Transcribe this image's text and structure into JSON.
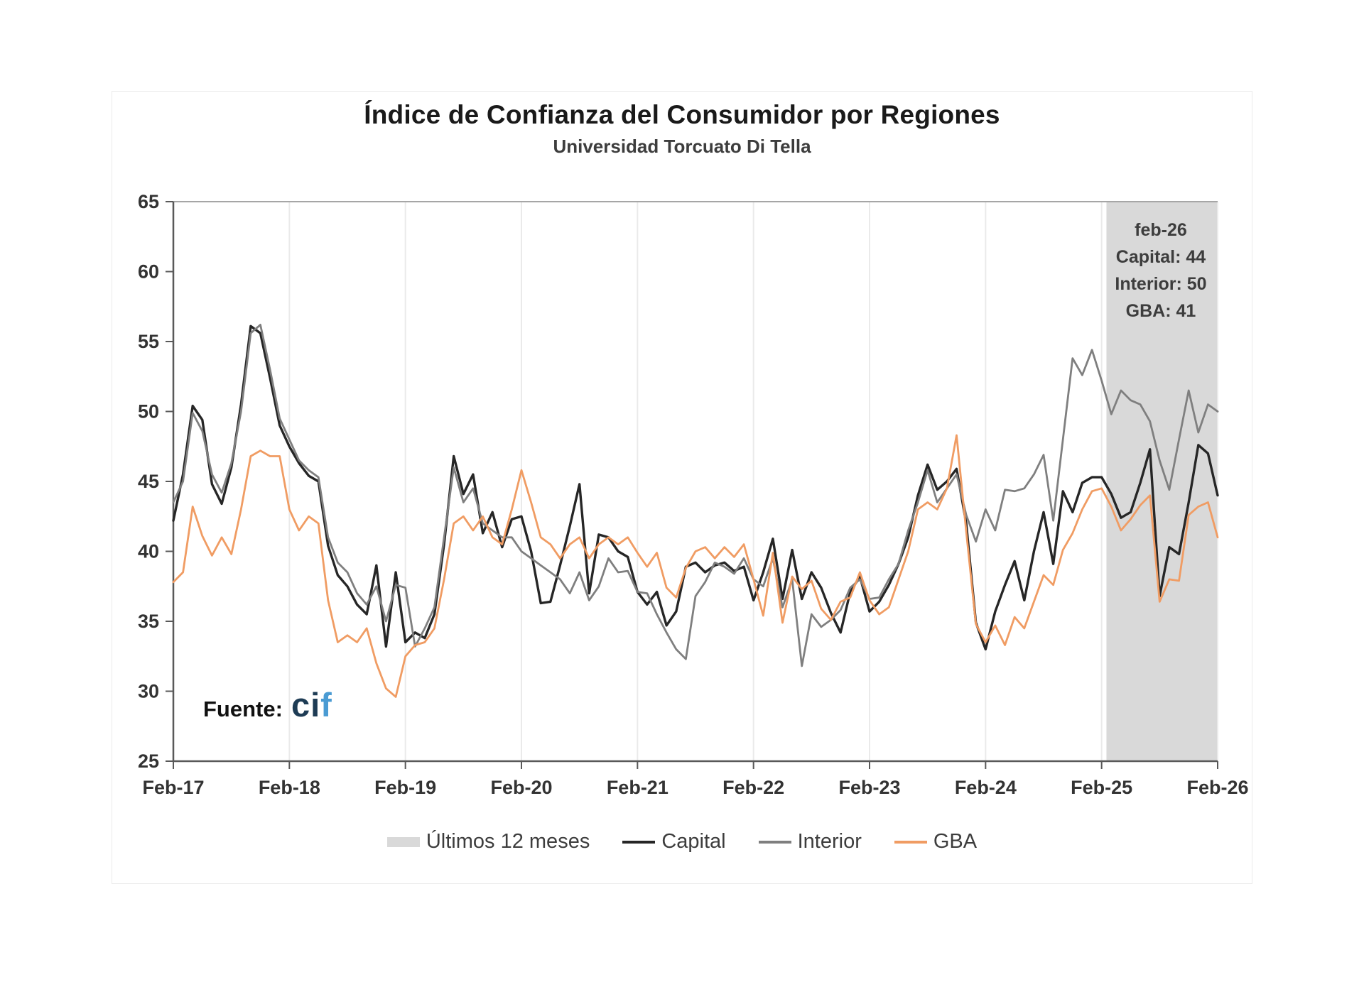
{
  "chart_data": {
    "type": "line",
    "title": "Índice de Confianza del Consumidor por Regiones",
    "subtitle": "Universidad Torcuato Di Tella",
    "xlabel": "",
    "ylabel": "",
    "ylim": [
      25,
      65
    ],
    "y_ticks": [
      25,
      30,
      35,
      40,
      45,
      50,
      55,
      60,
      65
    ],
    "x_tick_labels": [
      "Feb-17",
      "Feb-18",
      "Feb-19",
      "Feb-20",
      "Feb-21",
      "Feb-22",
      "Feb-23",
      "Feb-24",
      "Feb-25",
      "Feb-26"
    ],
    "x_months_per_tick": 12,
    "x_start_month": "Feb-17",
    "x_end_month": "Feb-26",
    "grid": "vertical-only",
    "legend_position": "bottom",
    "highlight_band": {
      "label": "Últimos 12 meses",
      "from_month": "Mar-25",
      "to_month": "Feb-26",
      "from_month_index": 97,
      "color": "#d9d9d9"
    },
    "annotation": {
      "lines": [
        "feb-26",
        "Capital: 44",
        "Interior: 50",
        "GBA: 41"
      ],
      "month": "feb-26",
      "values": {
        "Capital": 44,
        "Interior": 50,
        "GBA": 41
      }
    },
    "series": [
      {
        "name": "Capital",
        "color": "#262626",
        "values": [
          42.2,
          45.5,
          50.4,
          49.4,
          44.8,
          43.4,
          46.0,
          50.5,
          56.1,
          55.6,
          52.4,
          49.0,
          47.5,
          46.3,
          45.4,
          45.0,
          40.4,
          38.3,
          37.5,
          36.2,
          35.5,
          39.0,
          33.2,
          38.5,
          33.5,
          34.2,
          33.8,
          35.5,
          40.5,
          46.8,
          44.1,
          45.5,
          41.3,
          42.8,
          40.3,
          42.3,
          42.5,
          40.0,
          36.3,
          36.4,
          39.0,
          41.8,
          44.8,
          37.0,
          41.2,
          41.0,
          40.0,
          39.6,
          37.1,
          36.2,
          37.1,
          34.7,
          35.7,
          38.9,
          39.2,
          38.5,
          39.0,
          39.2,
          38.6,
          38.9,
          36.5,
          38.5,
          40.9,
          36.6,
          40.1,
          36.6,
          38.5,
          37.4,
          35.6,
          34.2,
          37.1,
          38.2,
          35.7,
          36.4,
          37.6,
          39.1,
          41.0,
          44.0,
          46.2,
          44.4,
          45.0,
          45.9,
          42.0,
          34.9,
          33.0,
          35.7,
          37.6,
          39.3,
          36.5,
          40.0,
          42.8,
          39.1,
          44.3,
          42.8,
          44.9,
          45.3,
          45.3,
          44.1,
          42.4,
          42.8,
          44.9,
          47.3,
          36.8,
          40.3,
          39.8,
          43.5,
          47.6,
          47.0,
          44.0
        ]
      },
      {
        "name": "Interior",
        "color": "#7f7f7f",
        "values": [
          43.5,
          45.0,
          49.9,
          48.6,
          45.5,
          44.2,
          46.3,
          50.0,
          55.6,
          56.2,
          53.0,
          49.5,
          48.0,
          46.5,
          45.8,
          45.3,
          41.0,
          39.2,
          38.5,
          37.0,
          36.2,
          37.5,
          35.0,
          37.6,
          37.4,
          33.2,
          34.5,
          36.0,
          41.0,
          46.0,
          43.5,
          44.5,
          42.0,
          41.5,
          41.0,
          41.0,
          40.0,
          39.5,
          39.0,
          38.5,
          38.0,
          37.0,
          38.5,
          36.5,
          37.5,
          39.5,
          38.5,
          38.6,
          37.1,
          37.0,
          35.5,
          34.2,
          33.0,
          32.3,
          36.8,
          37.8,
          39.2,
          38.9,
          38.4,
          39.5,
          38.0,
          37.5,
          39.5,
          36.0,
          38.0,
          31.8,
          35.5,
          34.6,
          35.1,
          35.8,
          37.4,
          38.0,
          36.6,
          36.7,
          38.0,
          39.1,
          41.5,
          43.5,
          45.8,
          43.5,
          44.5,
          45.5,
          42.6,
          40.7,
          43.0,
          41.5,
          44.4,
          44.3,
          44.5,
          45.5,
          46.9,
          42.2,
          48.0,
          53.8,
          52.6,
          54.4,
          52.2,
          49.8,
          51.5,
          50.8,
          50.5,
          49.3,
          46.5,
          44.4,
          48.0,
          51.5,
          48.5,
          50.5,
          50.0
        ]
      },
      {
        "name": "GBA",
        "color": "#f09c63",
        "values": [
          37.8,
          38.5,
          43.2,
          41.1,
          39.7,
          41.0,
          39.8,
          43.0,
          46.8,
          47.2,
          46.8,
          46.8,
          43.0,
          41.5,
          42.5,
          42.0,
          36.5,
          33.5,
          34.0,
          33.5,
          34.5,
          32.0,
          30.2,
          29.6,
          32.5,
          33.3,
          33.5,
          34.5,
          38.0,
          42.0,
          42.5,
          41.5,
          42.5,
          41.0,
          40.5,
          43.0,
          45.8,
          43.5,
          41.0,
          40.5,
          39.5,
          40.5,
          41.0,
          39.5,
          40.5,
          41.0,
          40.5,
          41.0,
          39.9,
          38.9,
          39.9,
          37.4,
          36.7,
          38.8,
          40.0,
          40.3,
          39.5,
          40.3,
          39.6,
          40.5,
          38.0,
          35.4,
          39.9,
          34.9,
          38.2,
          37.3,
          37.9,
          35.9,
          35.1,
          36.4,
          36.7,
          38.5,
          36.5,
          35.5,
          36.0,
          38.0,
          40.0,
          43.0,
          43.5,
          43.0,
          44.5,
          48.3,
          41.4,
          34.8,
          33.5,
          34.7,
          33.3,
          35.3,
          34.5,
          36.4,
          38.3,
          37.6,
          40.1,
          41.3,
          43.0,
          44.3,
          44.5,
          43.2,
          41.5,
          42.3,
          43.3,
          44.0,
          36.4,
          38.0,
          37.9,
          42.6,
          43.2,
          43.5,
          41.0
        ]
      }
    ]
  },
  "source": {
    "label": "Fuente:",
    "logo_ci": "ci",
    "logo_f": "f"
  },
  "colors": {
    "axis": "#595959",
    "gridline": "#eaeaea",
    "plot_top_border": "#a6a6a6",
    "tick_label": "#333333",
    "band": "#d9d9d9"
  }
}
